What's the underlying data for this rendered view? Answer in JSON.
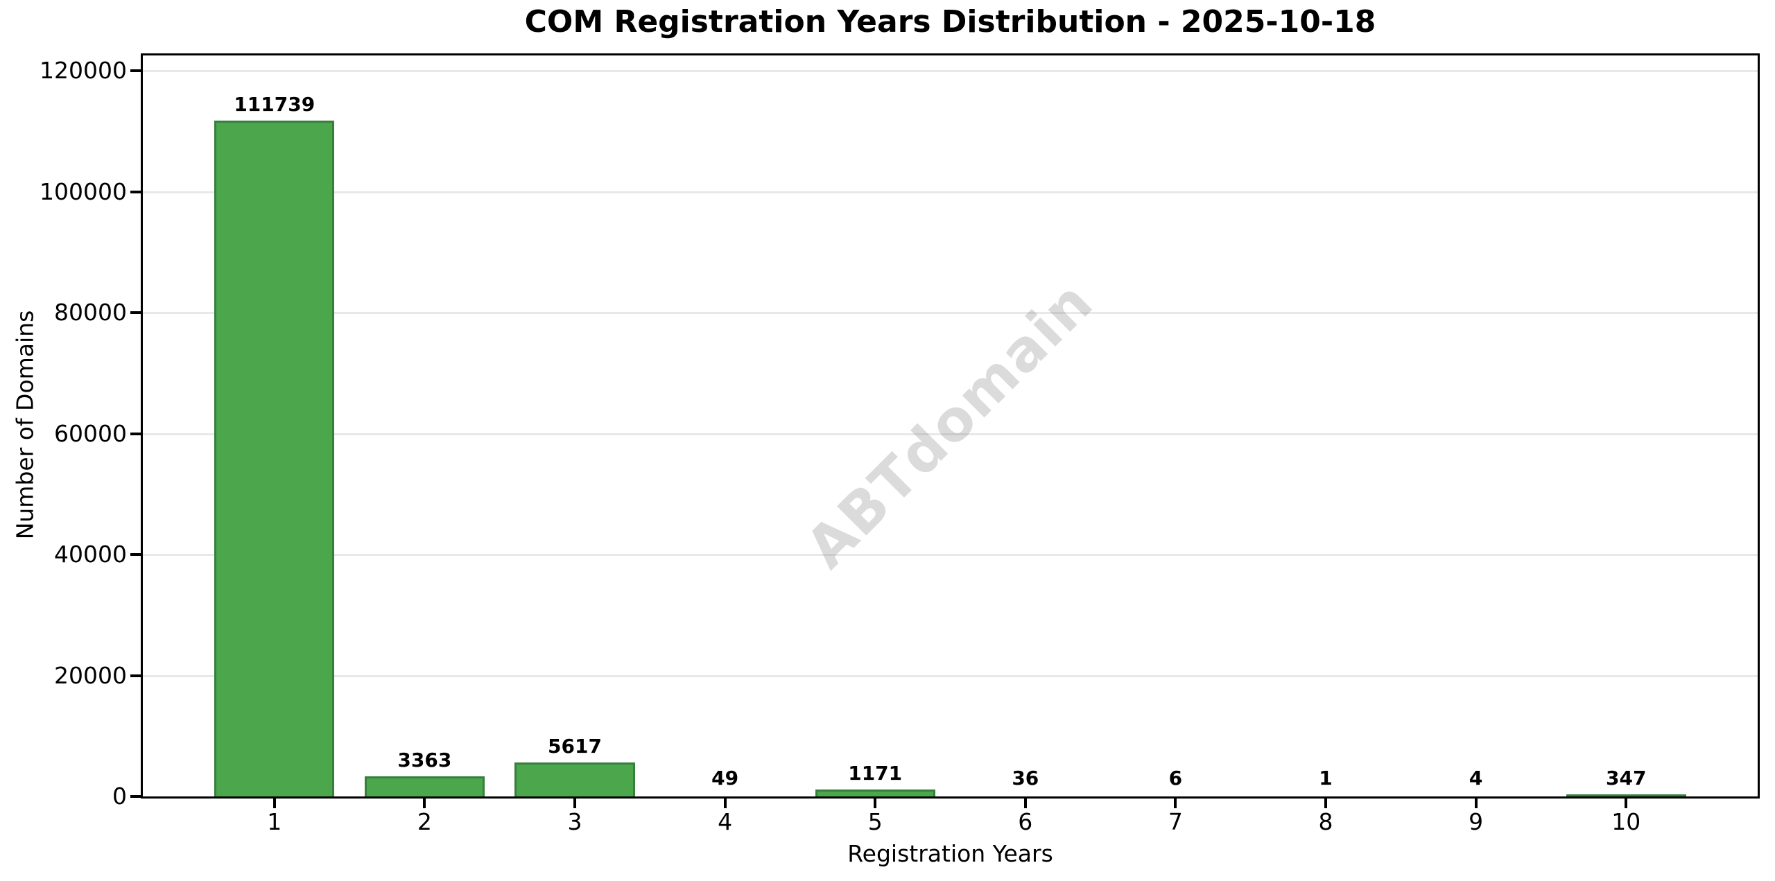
{
  "chart_data": {
    "type": "bar",
    "title": "COM Registration Years Distribution - 2025-10-18",
    "xlabel": "Registration Years",
    "ylabel": "Number of Domains",
    "categories": [
      "1",
      "2",
      "3",
      "4",
      "5",
      "6",
      "7",
      "8",
      "9",
      "10"
    ],
    "values": [
      111739,
      3363,
      5617,
      49,
      1171,
      36,
      6,
      1,
      4,
      347
    ],
    "bar_value_labels": [
      "111739",
      "3363",
      "5617",
      "49",
      "1171",
      "36",
      "6",
      "1",
      "4",
      "347"
    ],
    "yticks": [
      0,
      20000,
      40000,
      60000,
      80000,
      100000,
      120000
    ],
    "ytick_labels": [
      "0",
      "20000",
      "40000",
      "60000",
      "80000",
      "100000",
      "120000"
    ],
    "ylim": [
      0,
      122913
    ],
    "xlim": [
      0.11,
      10.89
    ],
    "bar_width": 0.8,
    "grid": "horizontal",
    "legend": "none",
    "watermark": "ABTdomain",
    "colors": {
      "bar_fill": "#4ca64c",
      "bar_edge": "#35803a",
      "grid": "#e8e8e8",
      "spine": "#000000",
      "text": "#000000",
      "watermark": "#808080"
    },
    "watermark_opacity": 0.28
  }
}
